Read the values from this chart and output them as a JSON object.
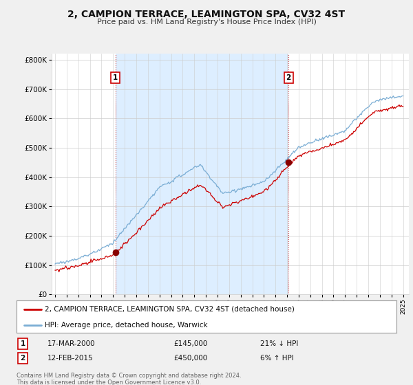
{
  "title": "2, CAMPION TERRACE, LEAMINGTON SPA, CV32 4ST",
  "subtitle": "Price paid vs. HM Land Registry's House Price Index (HPI)",
  "sale1_date": "17-MAR-2000",
  "sale1_price": 145000,
  "sale1_pct": "21% ↓ HPI",
  "sale1_label": "1",
  "sale1_x": 2000.21,
  "sale2_date": "12-FEB-2015",
  "sale2_price": 450000,
  "sale2_pct": "6% ↑ HPI",
  "sale2_label": "2",
  "sale2_x": 2015.12,
  "legend_line1": "2, CAMPION TERRACE, LEAMINGTON SPA, CV32 4ST (detached house)",
  "legend_line2": "HPI: Average price, detached house, Warwick",
  "footer": "Contains HM Land Registry data © Crown copyright and database right 2024.\nThis data is licensed under the Open Government Licence v3.0.",
  "line_color_red": "#cc0000",
  "line_color_blue": "#7aadd4",
  "shade_color": "#ddeeff",
  "background_color": "#f0f0f0",
  "plot_bg_color": "#ffffff",
  "ylim": [
    0,
    820000
  ],
  "xlim_start": 1994.7,
  "xlim_end": 2025.5
}
